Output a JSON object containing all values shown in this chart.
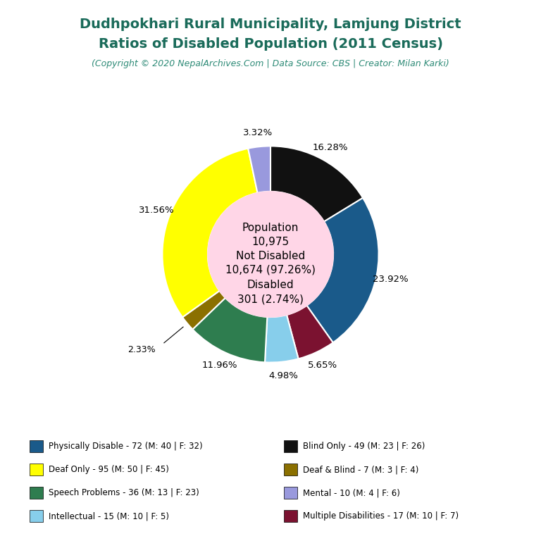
{
  "title_line1": "Dudhpokhari Rural Municipality, Lamjung District",
  "title_line2": "Ratios of Disabled Population (2011 Census)",
  "subtitle": "(Copyright © 2020 NepalArchives.Com | Data Source: CBS | Creator: Milan Karki)",
  "title_color": "#1a6b5a",
  "subtitle_color": "#2e8b77",
  "center_bg": "#ffd6e7",
  "background_color": "#ffffff",
  "slices": [
    {
      "label": "Blind Only - 49 (M: 23 | F: 26)",
      "value": 49,
      "color": "#111111"
    },
    {
      "label": "Physically Disable - 72 (M: 40 | F: 32)",
      "value": 72,
      "color": "#1a5a8a"
    },
    {
      "label": "Multiple Disabilities - 17 (M: 10 | F: 7)",
      "value": 17,
      "color": "#7b1230"
    },
    {
      "label": "Intellectual - 15 (M: 10 | F: 5)",
      "value": 15,
      "color": "#87ceeb"
    },
    {
      "label": "Speech Problems - 36 (M: 13 | F: 23)",
      "value": 36,
      "color": "#2e7d4f"
    },
    {
      "label": "Deaf & Blind - 7 (M: 3 | F: 4)",
      "value": 7,
      "color": "#8b7000"
    },
    {
      "label": "Deaf Only - 95 (M: 50 | F: 45)",
      "value": 95,
      "color": "#ffff00"
    },
    {
      "label": "Mental - 10 (M: 4 | F: 6)",
      "value": 10,
      "color": "#9999dd"
    }
  ],
  "pct_labels": [
    "16.28%",
    "23.92%",
    "5.65%",
    "4.98%",
    "11.96%",
    "2.33%",
    "31.56%",
    "3.32%"
  ],
  "legend_left": [
    {
      "color": "#1a5a8a",
      "label": "Physically Disable - 72 (M: 40 | F: 32)"
    },
    {
      "color": "#ffff00",
      "label": "Deaf Only - 95 (M: 50 | F: 45)"
    },
    {
      "color": "#2e7d4f",
      "label": "Speech Problems - 36 (M: 13 | F: 23)"
    },
    {
      "color": "#87ceeb",
      "label": "Intellectual - 15 (M: 10 | F: 5)"
    }
  ],
  "legend_right": [
    {
      "color": "#111111",
      "label": "Blind Only - 49 (M: 23 | F: 26)"
    },
    {
      "color": "#8b7000",
      "label": "Deaf & Blind - 7 (M: 3 | F: 4)"
    },
    {
      "color": "#9999dd",
      "label": "Mental - 10 (M: 4 | F: 6)"
    },
    {
      "color": "#7b1230",
      "label": "Multiple Disabilities - 17 (M: 10 | F: 7)"
    }
  ]
}
